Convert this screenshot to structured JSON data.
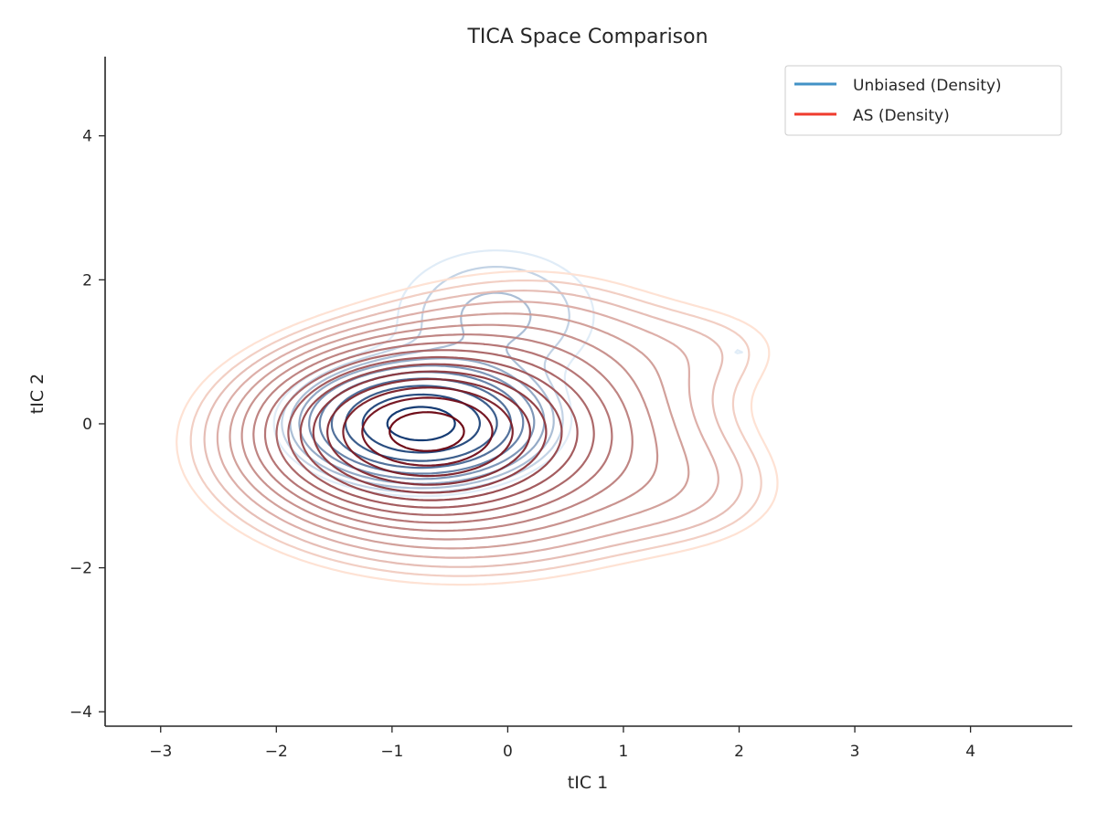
{
  "chart_data": {
    "type": "contour",
    "title": "TICA Space Comparison",
    "xlabel": "tIC 1",
    "ylabel": "tIC 2",
    "xlim": [
      -3.48,
      4.88
    ],
    "ylim": [
      -4.2,
      5.1
    ],
    "xticks": [
      -3,
      -2,
      -1,
      0,
      1,
      2,
      3,
      4
    ],
    "yticks": [
      -4,
      -2,
      0,
      2,
      4
    ],
    "xtick_labels": [
      "−3",
      "−2",
      "−1",
      "0",
      "1",
      "2",
      "3",
      "4"
    ],
    "ytick_labels": [
      "−4",
      "−2",
      "0",
      "2",
      "4"
    ],
    "legend": {
      "placement": "top-right",
      "entries": [
        {
          "label": "Unbiased (Density)",
          "color": "#4292c6"
        },
        {
          "label": "AS (Density)",
          "color": "#ef3b2c"
        }
      ]
    },
    "grid": false,
    "series": [
      {
        "name": "Unbiased (Density)",
        "colormap": "Blues",
        "color_low": "#deebf7",
        "color_high": "#08306b",
        "levels": 10,
        "components": [
          {
            "center": [
              -0.75,
              0.0
            ],
            "sx": 0.48,
            "sy": 0.38,
            "weight": 1.0
          },
          {
            "center": [
              -0.1,
              1.5
            ],
            "sx": 0.65,
            "sy": 0.7,
            "weight": 0.07
          },
          {
            "center": [
              2.0,
              1.0
            ],
            "sx": 0.35,
            "sy": 0.3,
            "weight": 0.03
          },
          {
            "center": [
              1.6,
              -1.0
            ],
            "sx": 0.5,
            "sy": 0.45,
            "weight": 0.02
          }
        ]
      },
      {
        "name": "AS (Density)",
        "colormap": "Reds",
        "color_low": "#fee0d2",
        "color_high": "#67000d",
        "levels": 16,
        "components": [
          {
            "center": [
              -0.72,
              -0.1
            ],
            "sx": 0.62,
            "sy": 0.52,
            "weight": 1.0
          },
          {
            "center": [
              -0.4,
              -0.3
            ],
            "sx": 1.25,
            "sy": 1.0,
            "weight": 0.22
          },
          {
            "center": [
              0.3,
              1.2
            ],
            "sx": 0.9,
            "sy": 0.75,
            "weight": 0.05
          },
          {
            "center": [
              1.9,
              1.1
            ],
            "sx": 0.55,
            "sy": 0.45,
            "weight": 0.025
          },
          {
            "center": [
              1.7,
              -1.0
            ],
            "sx": 0.6,
            "sy": 0.55,
            "weight": 0.03
          }
        ]
      }
    ]
  }
}
